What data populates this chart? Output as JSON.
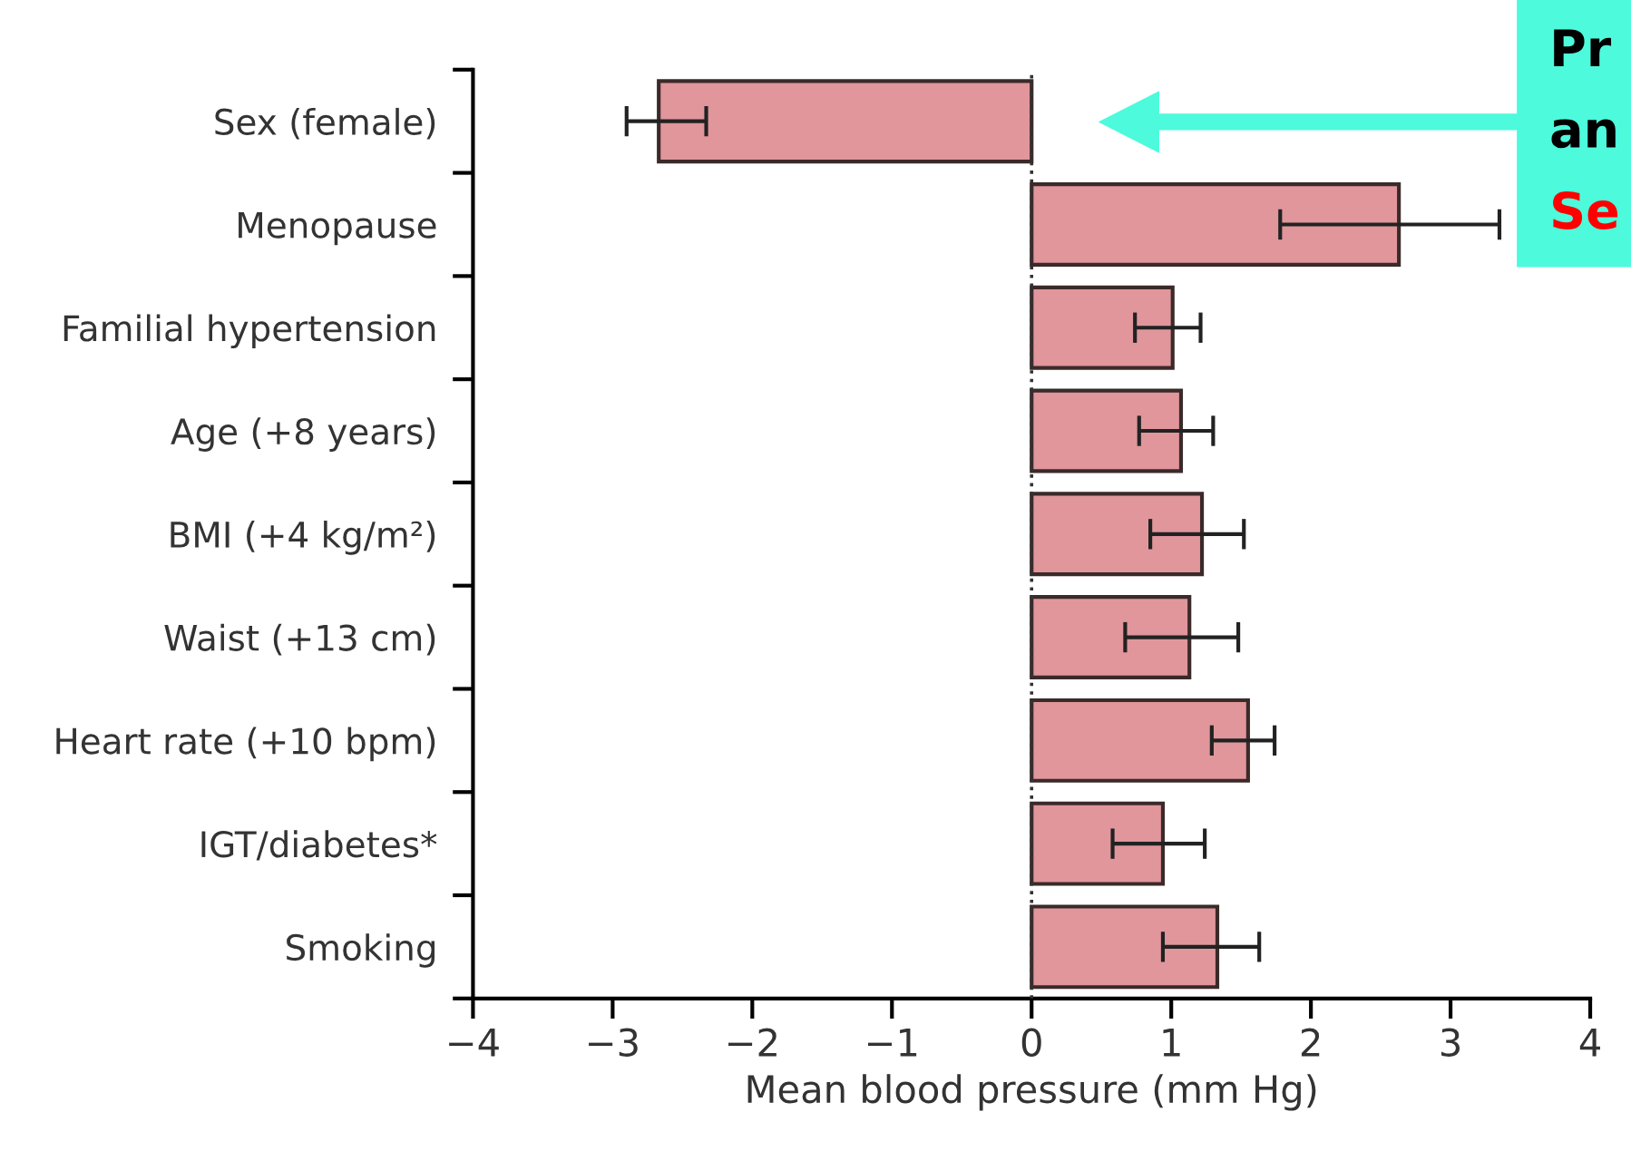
{
  "chart_data": {
    "type": "bar",
    "orientation": "horizontal",
    "xlabel": "Mean blood pressure (mm Hg)",
    "categories": [
      "Sex (female)",
      "Menopause",
      "Familial hypertension",
      "Age (+8 years)",
      "BMI (+4 kg/m²)",
      "Waist (+13 cm)",
      "Heart rate (+10 bpm)",
      "IGT/diabetes*",
      "Smoking"
    ],
    "values": [
      -2.67,
      2.63,
      1.01,
      1.07,
      1.22,
      1.13,
      1.55,
      0.94,
      1.33
    ],
    "errors": [
      [
        -2.9,
        -2.33
      ],
      [
        1.78,
        3.35
      ],
      [
        0.74,
        1.21
      ],
      [
        0.77,
        1.3
      ],
      [
        0.85,
        1.52
      ],
      [
        0.67,
        1.48
      ],
      [
        1.29,
        1.74
      ],
      [
        0.58,
        1.24
      ],
      [
        0.94,
        1.63
      ]
    ],
    "color": "#e0969b",
    "xlim": [
      -4,
      4
    ],
    "xticks": [
      {
        "value": -4,
        "label": "−4"
      },
      {
        "value": -3,
        "label": "−3"
      },
      {
        "value": -2,
        "label": "−2"
      },
      {
        "value": -1,
        "label": "−1"
      },
      0,
      1,
      2,
      3,
      4
    ],
    "ref_lines": [
      {
        "axis": "x",
        "value": 0,
        "line_style": "dotted",
        "color": "#333333"
      }
    ],
    "grid": false,
    "annotations": [
      "Pr",
      "an",
      "Se"
    ]
  }
}
